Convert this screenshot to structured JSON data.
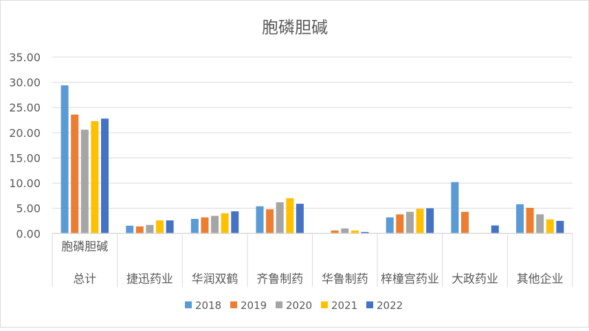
{
  "chart_data": {
    "type": "bar",
    "title": "胞磷胆碱",
    "xlabel": "",
    "ylabel": "",
    "ylim": [
      0,
      35
    ],
    "yticks": [
      "0.00",
      "5.00",
      "10.00",
      "15.00",
      "20.00",
      "25.00",
      "30.00",
      "35.00"
    ],
    "grid": true,
    "legend_position": "bottom",
    "categories": [
      "胞磷胆碱 总计",
      "捷迅药业",
      "华润双鹤",
      "齐鲁制药",
      "华鲁制药",
      "梓橦宫药业",
      "大政药业",
      "其他企业"
    ],
    "category_labels": [
      {
        "top": "胞磷胆碱",
        "bottom": "总计"
      },
      {
        "top": "",
        "bottom": "捷迅药业"
      },
      {
        "top": "",
        "bottom": "华润双鹤"
      },
      {
        "top": "",
        "bottom": "齐鲁制药"
      },
      {
        "top": "",
        "bottom": "华鲁制药"
      },
      {
        "top": "",
        "bottom": "梓橦宫药业"
      },
      {
        "top": "",
        "bottom": "大政药业"
      },
      {
        "top": "",
        "bottom": "其他企业"
      }
    ],
    "series": [
      {
        "name": "2018",
        "color": "#5b9bd5",
        "values": [
          29.4,
          1.55,
          2.9,
          5.4,
          0,
          3.2,
          10.2,
          5.8
        ]
      },
      {
        "name": "2019",
        "color": "#ed7d31",
        "values": [
          23.6,
          1.4,
          3.2,
          4.8,
          0.6,
          3.8,
          4.3,
          5.1
        ]
      },
      {
        "name": "2020",
        "color": "#a5a5a5",
        "values": [
          20.6,
          1.7,
          3.5,
          6.2,
          1.0,
          4.3,
          0,
          3.8
        ]
      },
      {
        "name": "2021",
        "color": "#ffc000",
        "values": [
          22.3,
          2.6,
          4.0,
          7.0,
          0.6,
          4.9,
          0,
          2.8
        ]
      },
      {
        "name": "2022",
        "color": "#4472c4",
        "values": [
          22.8,
          2.6,
          4.4,
          5.9,
          0.3,
          5.0,
          1.6,
          2.5
        ]
      }
    ]
  }
}
